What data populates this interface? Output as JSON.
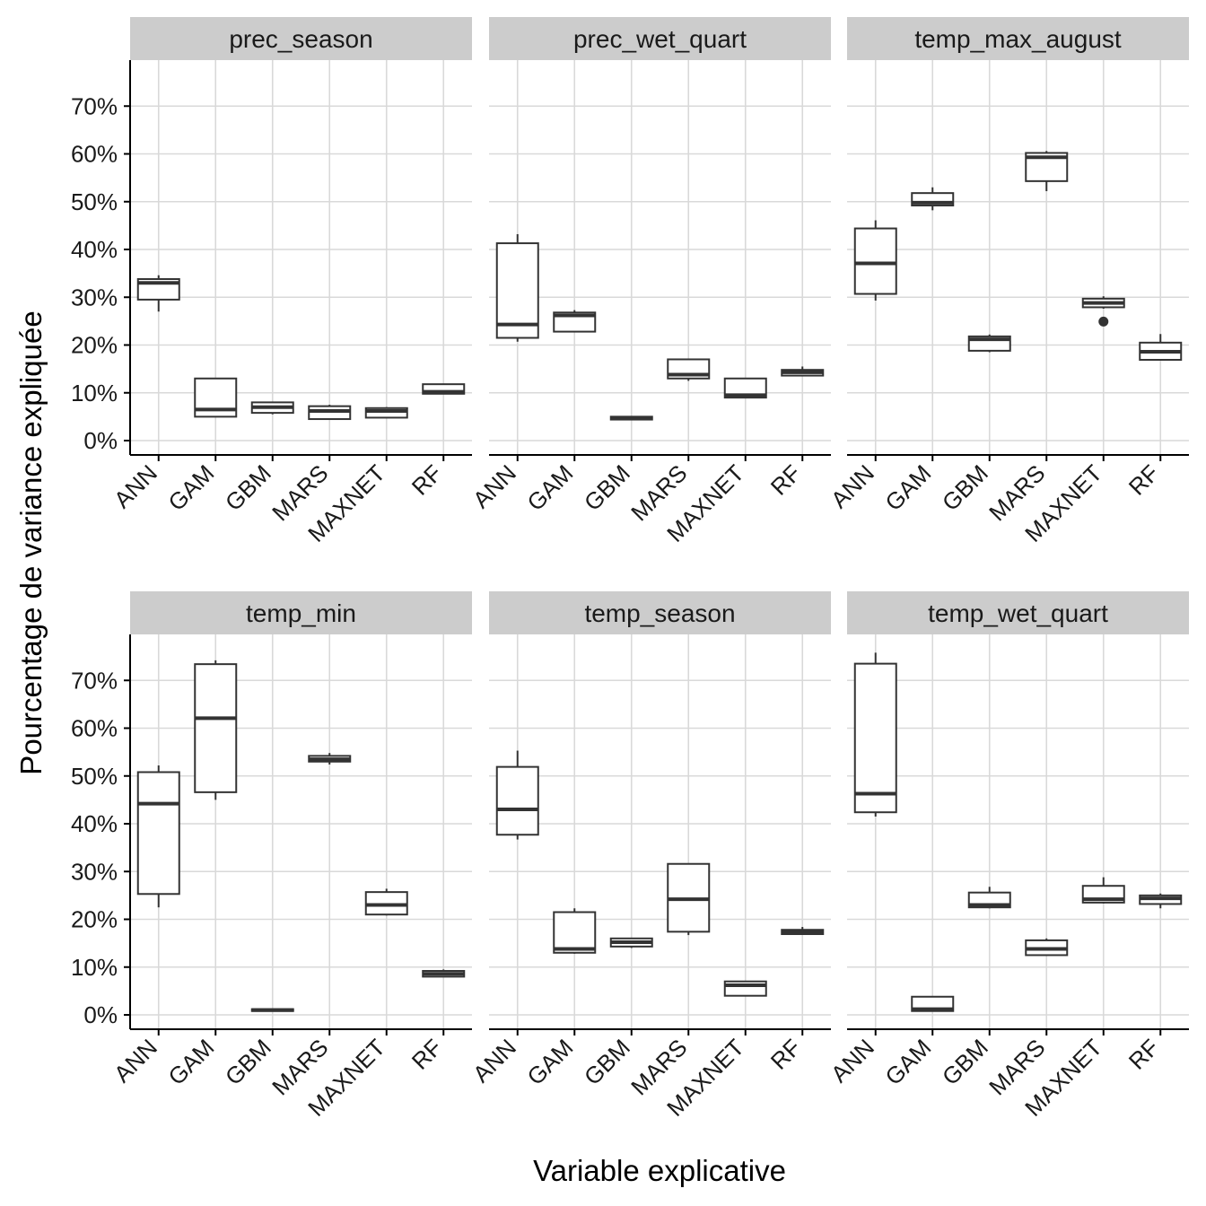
{
  "chart_data": {
    "type": "boxplot",
    "facet_layout": "3 columns x 2 rows",
    "xlabel": "Variable explicative",
    "ylabel": "Pourcentage de variance expliquée",
    "ylim": [
      0,
      80
    ],
    "y_ticks": [
      0,
      10,
      20,
      30,
      40,
      50,
      60,
      70
    ],
    "y_tick_labels": [
      "0%",
      "10%",
      "20%",
      "30%",
      "40%",
      "50%",
      "60%",
      "70%"
    ],
    "categories": [
      "ANN",
      "GAM",
      "GBM",
      "MARS",
      "MAXNET",
      "RF"
    ],
    "grid": true,
    "colors": {
      "strip_bg": "#cccccc",
      "grid": "#d9d9d9",
      "box_line": "#333333",
      "axis": "#000000"
    },
    "panels": [
      {
        "title": "prec_season",
        "boxes": [
          {
            "category": "ANN",
            "min": 27,
            "q1": 29.5,
            "median": 33,
            "q3": 33.8,
            "max": 34.6
          },
          {
            "category": "GAM",
            "min": 5,
            "q1": 5,
            "median": 6.5,
            "q3": 13,
            "max": 13
          },
          {
            "category": "GBM",
            "min": 5.5,
            "q1": 5.8,
            "median": 7,
            "q3": 8,
            "max": 8
          },
          {
            "category": "MARS",
            "min": 4.5,
            "q1": 4.5,
            "median": 6.2,
            "q3": 7.2,
            "max": 7.5
          },
          {
            "category": "MAXNET",
            "min": 4.8,
            "q1": 4.8,
            "median": 6.2,
            "q3": 6.8,
            "max": 7
          },
          {
            "category": "RF",
            "min": 9.8,
            "q1": 9.8,
            "median": 10.2,
            "q3": 11.8,
            "max": 11.8
          }
        ]
      },
      {
        "title": "prec_wet_quart",
        "boxes": [
          {
            "category": "ANN",
            "min": 20.7,
            "q1": 21.5,
            "median": 24.3,
            "q3": 41.3,
            "max": 43.2
          },
          {
            "category": "GAM",
            "min": 22.8,
            "q1": 22.8,
            "median": 26.2,
            "q3": 26.8,
            "max": 27.3
          },
          {
            "category": "GBM",
            "min": 4.3,
            "q1": 4.4,
            "median": 4.7,
            "q3": 5,
            "max": 5.1
          },
          {
            "category": "MARS",
            "min": 12.5,
            "q1": 13,
            "median": 13.8,
            "q3": 17,
            "max": 17
          },
          {
            "category": "MAXNET",
            "min": 9,
            "q1": 9,
            "median": 9.5,
            "q3": 13,
            "max": 13
          },
          {
            "category": "RF",
            "min": 13.5,
            "q1": 13.6,
            "median": 14.3,
            "q3": 14.8,
            "max": 15.5
          }
        ]
      },
      {
        "title": "temp_max_august",
        "boxes": [
          {
            "category": "ANN",
            "min": 29.3,
            "q1": 30.7,
            "median": 37.1,
            "q3": 44.4,
            "max": 46.1
          },
          {
            "category": "GAM",
            "min": 48.2,
            "q1": 49.2,
            "median": 49.8,
            "q3": 51.8,
            "max": 53
          },
          {
            "category": "GBM",
            "min": 18.5,
            "q1": 18.8,
            "median": 21.2,
            "q3": 21.8,
            "max": 22.2
          },
          {
            "category": "MARS",
            "min": 52.2,
            "q1": 54.3,
            "median": 59.3,
            "q3": 60.2,
            "max": 60.6
          },
          {
            "category": "MAXNET",
            "min": 27.6,
            "q1": 27.9,
            "median": 28.8,
            "q3": 29.7,
            "max": 30.2,
            "outliers": [
              24.9
            ]
          },
          {
            "category": "RF",
            "min": 16.9,
            "q1": 16.9,
            "median": 18.6,
            "q3": 20.5,
            "max": 22.3
          }
        ]
      },
      {
        "title": "temp_min",
        "boxes": [
          {
            "category": "ANN",
            "min": 22.5,
            "q1": 25.3,
            "median": 44.2,
            "q3": 50.8,
            "max": 52.2
          },
          {
            "category": "GAM",
            "min": 45,
            "q1": 46.6,
            "median": 62.1,
            "q3": 73.4,
            "max": 74.2
          },
          {
            "category": "GBM",
            "min": 0.8,
            "q1": 0.8,
            "median": 1,
            "q3": 1.2,
            "max": 1.2
          },
          {
            "category": "MARS",
            "min": 52.4,
            "q1": 53,
            "median": 53.5,
            "q3": 54.2,
            "max": 54.8
          },
          {
            "category": "MAXNET",
            "min": 20.8,
            "q1": 21,
            "median": 23,
            "q3": 25.7,
            "max": 26.4
          },
          {
            "category": "RF",
            "min": 8,
            "q1": 8,
            "median": 8.6,
            "q3": 9.2,
            "max": 9.5
          }
        ]
      },
      {
        "title": "temp_season",
        "boxes": [
          {
            "category": "ANN",
            "min": 36.7,
            "q1": 37.7,
            "median": 43,
            "q3": 51.9,
            "max": 55.3
          },
          {
            "category": "GAM",
            "min": 12.8,
            "q1": 13,
            "median": 13.8,
            "q3": 21.5,
            "max": 22.3
          },
          {
            "category": "GBM",
            "min": 14,
            "q1": 14.3,
            "median": 15.2,
            "q3": 16,
            "max": 16
          },
          {
            "category": "MARS",
            "min": 16.7,
            "q1": 17.4,
            "median": 24.2,
            "q3": 31.6,
            "max": 31.6
          },
          {
            "category": "MAXNET",
            "min": 4,
            "q1": 4,
            "median": 6.2,
            "q3": 7,
            "max": 7
          },
          {
            "category": "RF",
            "min": 16.8,
            "q1": 16.9,
            "median": 17.4,
            "q3": 17.8,
            "max": 18.4
          }
        ]
      },
      {
        "title": "temp_wet_quart",
        "boxes": [
          {
            "category": "ANN",
            "min": 41.5,
            "q1": 42.4,
            "median": 46.3,
            "q3": 73.5,
            "max": 75.8
          },
          {
            "category": "GAM",
            "min": 0.8,
            "q1": 0.8,
            "median": 1.2,
            "q3": 3.8,
            "max": 3.8
          },
          {
            "category": "GBM",
            "min": 22.3,
            "q1": 22.5,
            "median": 23,
            "q3": 25.6,
            "max": 26.8
          },
          {
            "category": "MARS",
            "min": 12.5,
            "q1": 12.5,
            "median": 13.8,
            "q3": 15.6,
            "max": 16
          },
          {
            "category": "MAXNET",
            "min": 23.3,
            "q1": 23.5,
            "median": 24.2,
            "q3": 27,
            "max": 28.8
          },
          {
            "category": "RF",
            "min": 22.3,
            "q1": 23.2,
            "median": 24.4,
            "q3": 25,
            "max": 25.4
          }
        ]
      }
    ]
  }
}
